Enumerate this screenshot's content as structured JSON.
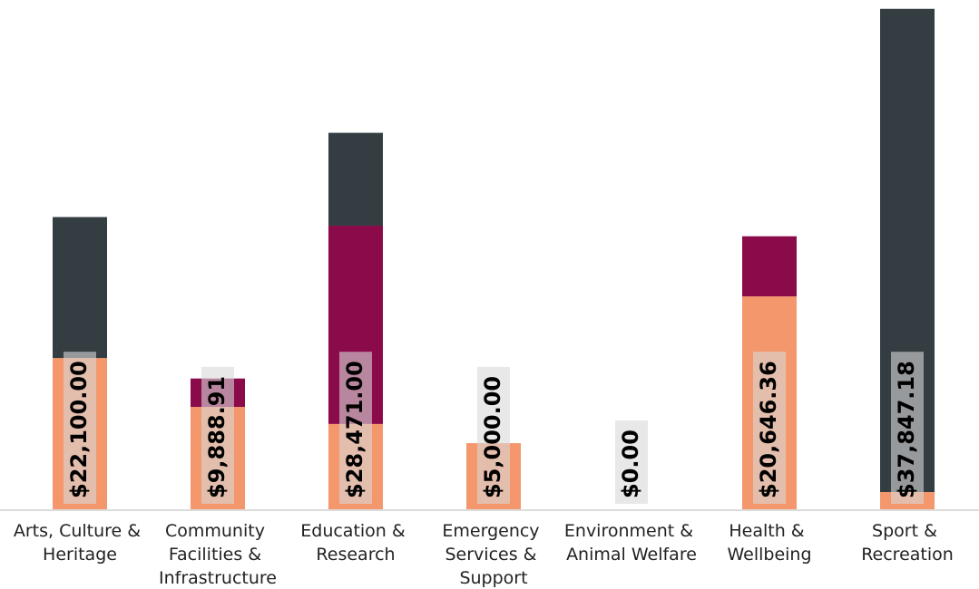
{
  "chart_data": {
    "type": "stacked-bar",
    "categories": [
      "Arts, Culture & Heritage",
      "Community Facilities & Infrastructure",
      "Education & Research",
      "Emergency Services & Support",
      "Environment & Animal Welfare",
      "Health & Wellbeing",
      "Sport & Recreation"
    ],
    "series": [
      {
        "color": "#f4976c",
        "values": [
          11440,
          7740,
          6450,
          5000,
          0,
          16100,
          1300
        ]
      },
      {
        "color": "#8a0a4a",
        "values": [
          0,
          2149,
          15000,
          0,
          0,
          4546,
          0
        ]
      },
      {
        "color": "#343d42",
        "values": [
          10660,
          0,
          7021,
          0,
          0,
          0,
          36547
        ]
      }
    ],
    "totals": [
      22100,
      9888.91,
      28471,
      5000,
      0,
      20646.36,
      37847.18
    ],
    "total_labels": [
      "$22,100.00",
      "$9,888.91",
      "$28,471.00",
      "$5,000.00",
      "$0.00",
      "$20,646.36",
      "$37,847.18"
    ],
    "ylim": [
      0,
      37900
    ]
  }
}
